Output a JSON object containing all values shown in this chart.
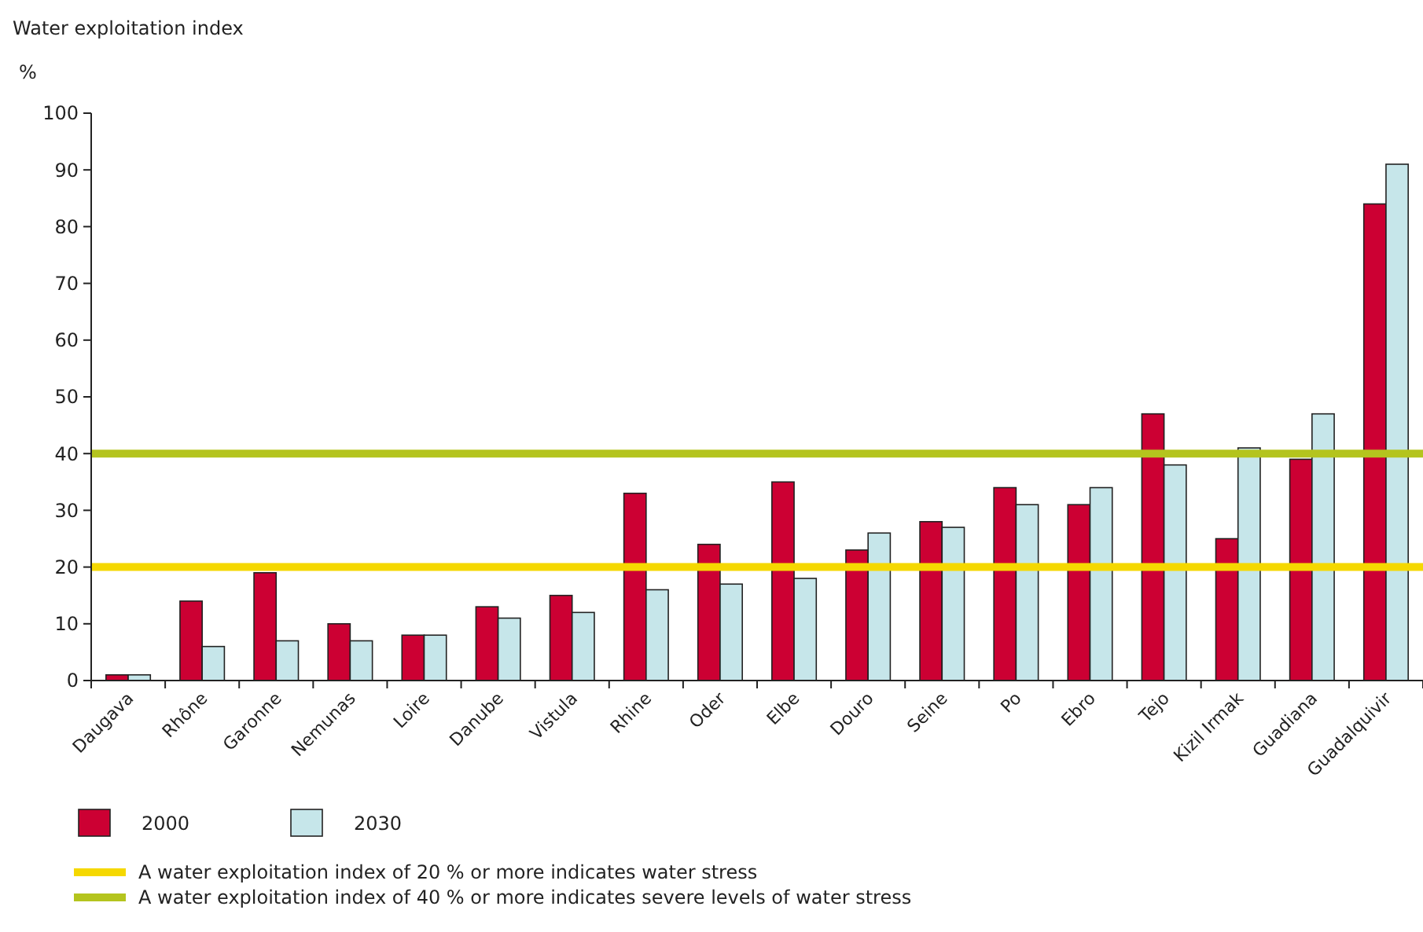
{
  "chart_data": {
    "type": "bar",
    "title": "Water exploitation index",
    "ylabel": "%",
    "categories": [
      "Daugava",
      "Rhône",
      "Garonne",
      "Nemunas",
      "Loire",
      "Danube",
      "Vistula",
      "Rhine",
      "Oder",
      "Elbe",
      "Douro",
      "Seine",
      "Po",
      "Ebro",
      "Tejo",
      "Kizil Irmak",
      "Guadiana",
      "Guadalquivir"
    ],
    "series": [
      {
        "name": "2000",
        "color": "#cc0033",
        "values": [
          1,
          14,
          19,
          10,
          8,
          13,
          15,
          33,
          24,
          35,
          23,
          28,
          34,
          31,
          47,
          25,
          39,
          84
        ]
      },
      {
        "name": "2030",
        "color": "#c6e6ea",
        "values": [
          1,
          6,
          7,
          7,
          8,
          11,
          12,
          16,
          17,
          18,
          26,
          27,
          31,
          34,
          38,
          41,
          47,
          91
        ]
      }
    ],
    "ylim": [
      0,
      100
    ],
    "yticks": [
      0,
      10,
      20,
      30,
      40,
      50,
      60,
      70,
      80,
      90,
      100
    ],
    "grid": false,
    "legend": "bottom",
    "ref_lines": [
      {
        "axis": "y",
        "value": 20,
        "label": "A water exploitation index of 20 % or more indicates water stress",
        "color": "#f5d800"
      },
      {
        "axis": "y",
        "value": 40,
        "label": "A water exploitation index of 40 % or more indicates severe levels of water stress",
        "color": "#b4c41e"
      }
    ]
  }
}
